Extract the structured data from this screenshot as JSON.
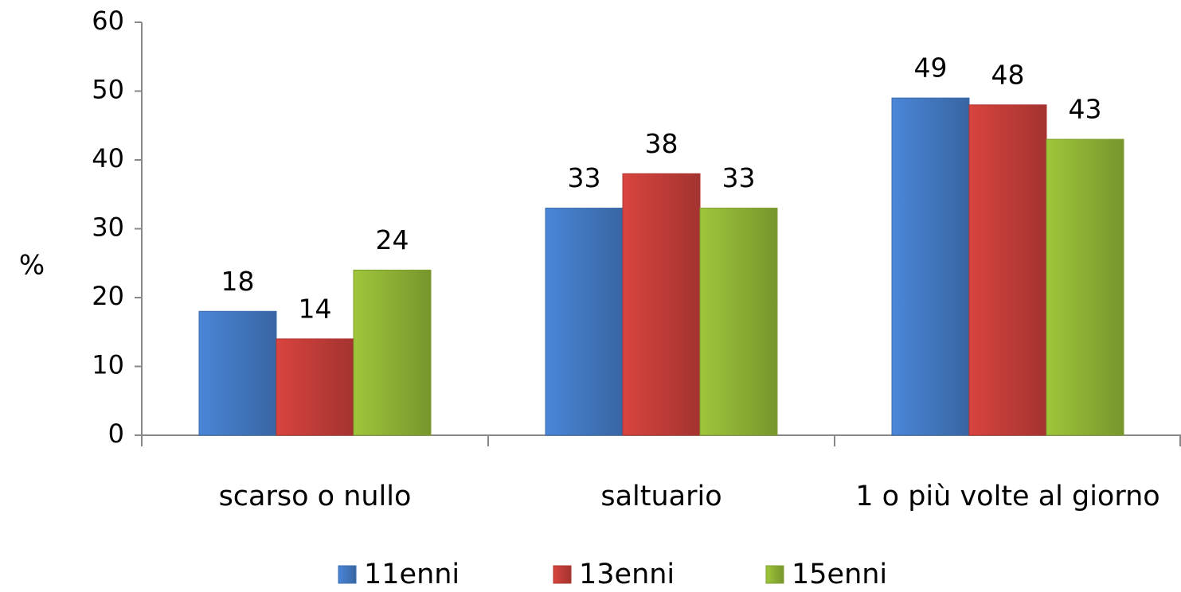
{
  "chart_data": {
    "type": "bar",
    "y_label": "%",
    "categories": [
      "scarso o nullo",
      "saltuario",
      "1 o più volte al giorno"
    ],
    "series": [
      {
        "name": "11enni",
        "color": "#4a86d8",
        "values": [
          18,
          33,
          49
        ]
      },
      {
        "name": "13enni",
        "color": "#d9443f",
        "values": [
          14,
          38,
          48
        ]
      },
      {
        "name": "15enni",
        "color": "#9fc63b",
        "values": [
          24,
          33,
          43
        ]
      }
    ],
    "ylim": [
      0,
      60
    ],
    "yticks": [
      0,
      10,
      20,
      30,
      40,
      50,
      60
    ],
    "grid": false,
    "legend": "bottom"
  }
}
